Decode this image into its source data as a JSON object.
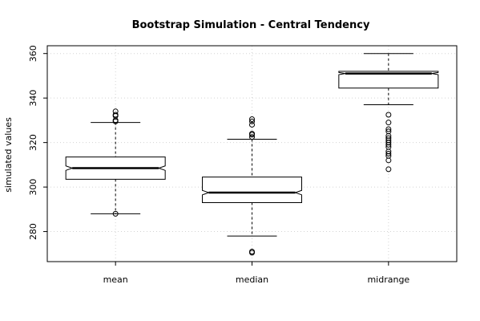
{
  "chart_data": {
    "type": "boxplot",
    "title": "Bootstrap Simulation - Central Tendency",
    "xlabel": "",
    "ylabel": "simulated values",
    "ylim": [
      266.5,
      363.5
    ],
    "yticks": [
      280,
      300,
      320,
      340,
      360
    ],
    "grid": true,
    "notched": true,
    "categories": [
      "mean",
      "median",
      "midrange"
    ],
    "boxes": [
      {
        "name": "mean",
        "whisker_low": 288,
        "q1": 303.5,
        "median": 308.5,
        "q3": 313.5,
        "whisker_high": 329,
        "notch": [
          307.5,
          309.5
        ],
        "outliers": [
          288,
          329.5,
          330,
          332,
          332.5,
          334
        ]
      },
      {
        "name": "median",
        "whisker_low": 278,
        "q1": 293,
        "median": 297.5,
        "q3": 304.5,
        "whisker_high": 321.5,
        "notch": [
          296.5,
          298.5
        ],
        "outliers": [
          270.5,
          271,
          322.5,
          323.5,
          324,
          328,
          329.5,
          330.5
        ]
      },
      {
        "name": "midrange",
        "whisker_low": 337,
        "q1": 344.5,
        "median": 351,
        "q3": 352,
        "whisker_high": 360,
        "notch": [
          350.5,
          351.5
        ],
        "outliers": [
          308,
          312,
          314,
          315,
          316,
          318,
          319,
          320,
          321,
          322,
          323,
          325,
          326,
          329,
          332.5
        ]
      }
    ]
  }
}
